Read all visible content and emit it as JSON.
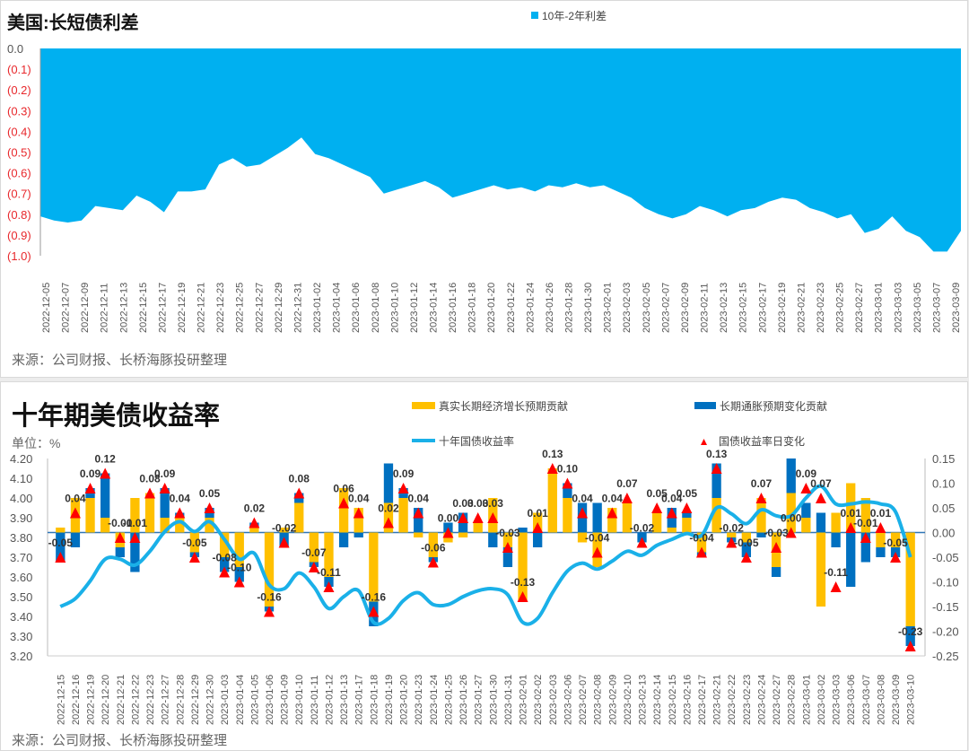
{
  "top": {
    "title": "美国:长短债利差",
    "legend": "10年-2年利差",
    "source": "来源：公司财报、长桥海豚投研整理",
    "colors": {
      "area": "#00b0f0",
      "neg_label": "#e8282c"
    }
  },
  "bottom": {
    "title": "十年期美债收益率",
    "unit": "单位：%",
    "legend": {
      "real": "真实长期经济增长预期贡献",
      "infl": "长期通胀预期变化贡献",
      "yield": "十年国债收益率",
      "change": "国债收益率日变化"
    },
    "source": "来源：公司财报、长桥海豚投研整理",
    "colors": {
      "real": "#ffc000",
      "infl": "#0070c0",
      "yield": "#1ab0e8",
      "change": "#ff0000"
    }
  },
  "chart_data": [
    {
      "type": "area",
      "title": "美国:长短债利差",
      "legend": [
        "10年-2年利差"
      ],
      "yticks": [
        "0.0",
        "(0.1)",
        "(0.2)",
        "(0.3)",
        "(0.4)",
        "(0.5)",
        "(0.6)",
        "(0.7)",
        "(0.8)",
        "(0.9)",
        "(1.0)"
      ],
      "ylim": [
        -1.0,
        0.0
      ],
      "xticks": [
        "2022-12-05",
        "2022-12-07",
        "2022-12-09",
        "2022-12-11",
        "2022-12-13",
        "2022-12-15",
        "2022-12-17",
        "2022-12-19",
        "2022-12-21",
        "2022-12-23",
        "2022-12-25",
        "2022-12-27",
        "2022-12-29",
        "2022-12-31",
        "2023-01-02",
        "2023-01-04",
        "2023-01-06",
        "2023-01-08",
        "2023-01-10",
        "2023-01-12",
        "2023-01-14",
        "2023-01-16",
        "2023-01-18",
        "2023-01-20",
        "2023-01-22",
        "2023-01-24",
        "2023-01-26",
        "2023-01-28",
        "2023-01-30",
        "2023-02-01",
        "2023-02-03",
        "2023-02-05",
        "2023-02-07",
        "2023-02-09",
        "2023-02-11",
        "2023-02-13",
        "2023-02-15",
        "2023-02-17",
        "2023-02-19",
        "2023-02-21",
        "2023-02-23",
        "2023-02-25",
        "2023-02-27",
        "2023-03-01",
        "2023-03-03",
        "2023-03-05",
        "2023-03-07",
        "2023-03-09"
      ],
      "series": [
        {
          "name": "10年-2年利差",
          "values": [
            -0.81,
            -0.83,
            -0.84,
            -0.83,
            -0.76,
            -0.77,
            -0.78,
            -0.71,
            -0.74,
            -0.79,
            -0.69,
            -0.69,
            -0.68,
            -0.56,
            -0.53,
            -0.57,
            -0.56,
            -0.52,
            -0.48,
            -0.43,
            -0.51,
            -0.53,
            -0.56,
            -0.59,
            -0.62,
            -0.7,
            -0.68,
            -0.66,
            -0.64,
            -0.67,
            -0.72,
            -0.7,
            -0.68,
            -0.66,
            -0.68,
            -0.67,
            -0.69,
            -0.66,
            -0.67,
            -0.65,
            -0.67,
            -0.66,
            -0.69,
            -0.72,
            -0.77,
            -0.8,
            -0.82,
            -0.8,
            -0.76,
            -0.78,
            -0.81,
            -0.78,
            -0.77,
            -0.74,
            -0.72,
            -0.73,
            -0.77,
            -0.79,
            -0.82,
            -0.8,
            -0.89,
            -0.87,
            -0.81,
            -0.88,
            -0.91,
            -0.98,
            -0.98,
            -0.88
          ]
        }
      ]
    },
    {
      "type": "bar",
      "title": "十年期美债收益率",
      "ylabel_left": "单位：%",
      "yticks_left": [
        "4.20",
        "4.10",
        "4.00",
        "3.90",
        "3.80",
        "3.70",
        "3.60",
        "3.50",
        "3.40",
        "3.30",
        "3.20"
      ],
      "ylim_left": [
        3.2,
        4.2
      ],
      "yticks_right": [
        "0.15",
        "0.10",
        "0.05",
        "0.00",
        "-0.05",
        "-0.10",
        "-0.15",
        "-0.20",
        "-0.25"
      ],
      "ylim_right": [
        -0.25,
        0.15
      ],
      "categories": [
        "2022-12-15",
        "2022-12-16",
        "2022-12-19",
        "2022-12-20",
        "2022-12-21",
        "2022-12-22",
        "2022-12-23",
        "2022-12-27",
        "2022-12-28",
        "2022-12-29",
        "2022-12-30",
        "2023-01-03",
        "2023-01-04",
        "2023-01-05",
        "2023-01-06",
        "2023-01-09",
        "2023-01-10",
        "2023-01-11",
        "2023-01-12",
        "2023-01-13",
        "2023-01-17",
        "2023-01-18",
        "2023-01-19",
        "2023-01-20",
        "2023-01-23",
        "2023-01-24",
        "2023-01-25",
        "2023-01-26",
        "2023-01-27",
        "2023-01-30",
        "2023-01-31",
        "2023-02-01",
        "2023-02-02",
        "2023-02-03",
        "2023-02-06",
        "2023-02-07",
        "2023-02-08",
        "2023-02-09",
        "2023-02-10",
        "2023-02-13",
        "2023-02-14",
        "2023-02-15",
        "2023-02-16",
        "2023-02-17",
        "2023-02-21",
        "2023-02-22",
        "2023-02-23",
        "2023-02-24",
        "2023-02-27",
        "2023-02-28",
        "2023-03-01",
        "2023-03-02",
        "2023-03-03",
        "2023-03-06",
        "2023-03-07",
        "2023-03-08",
        "2023-03-09",
        "2023-03-10"
      ],
      "series": [
        {
          "name": "真实长期经济增长预期贡献",
          "axis": "right",
          "values": [
            0.01,
            0.07,
            0.07,
            0.03,
            -0.03,
            0.07,
            0.08,
            0.03,
            0.03,
            -0.04,
            0.03,
            -0.05,
            -0.07,
            0.01,
            -0.15,
            0.01,
            0.06,
            -0.06,
            -0.09,
            0.09,
            0.05,
            -0.14,
            0.06,
            0.07,
            -0.01,
            -0.05,
            -0.02,
            -0.01,
            0.02,
            0.07,
            -0.03,
            -0.14,
            0.04,
            0.13,
            0.07,
            -0.02,
            -0.07,
            0.05,
            0.06,
            0.0,
            0.04,
            0.01,
            0.03,
            -0.04,
            0.07,
            -0.01,
            -0.02,
            0.07,
            -0.07,
            0.08,
            0.03,
            -0.15,
            0.04,
            0.1,
            0.07,
            -0.03,
            -0.03,
            -0.19
          ]
        },
        {
          "name": "长期通胀预期变化贡献",
          "axis": "right",
          "values": [
            -0.06,
            -0.03,
            0.02,
            0.09,
            -0.02,
            -0.08,
            0.0,
            0.06,
            0.01,
            -0.01,
            0.02,
            -0.03,
            -0.03,
            0.01,
            -0.01,
            -0.03,
            0.02,
            -0.01,
            -0.02,
            -0.03,
            -0.01,
            -0.05,
            0.08,
            0.02,
            0.05,
            -0.01,
            0.02,
            0.04,
            0.0,
            -0.03,
            -0.04,
            0.01,
            -0.03,
            0.0,
            0.03,
            0.06,
            0.06,
            0.0,
            0.0,
            -0.02,
            0.0,
            0.04,
            0.01,
            -0.01,
            0.07,
            -0.01,
            -0.03,
            -0.01,
            -0.02,
            0.07,
            0.03,
            0.04,
            -0.03,
            -0.11,
            -0.06,
            -0.02,
            -0.02,
            -0.04
          ]
        },
        {
          "name": "国债收益率日变化",
          "axis": "right",
          "labels": [
            "-0.05",
            "0.04",
            "0.09",
            "0.12",
            "-0.01",
            "-0.01",
            "0.08",
            "0.09",
            "0.04",
            "-0.05",
            "0.05",
            "-0.08",
            "-0.10",
            "0.02",
            "-0.16",
            "-0.02",
            "0.08",
            "-0.07",
            "-0.11",
            "0.06",
            "0.04",
            "-0.16",
            "0.02",
            "0.09",
            "0.04",
            "-0.06",
            "0.00",
            "0.03",
            "0.03",
            "0.03",
            "-0.03",
            "-0.13",
            "0.01",
            "0.13",
            "0.10",
            "0.04",
            "-0.04",
            "0.04",
            "0.07",
            "-0.02",
            "0.05",
            "0.04",
            "0.05",
            "-0.04",
            "0.13",
            "-0.02",
            "-0.05",
            "0.07",
            "-0.03",
            "0.00",
            "0.09",
            "0.07",
            "-0.11",
            "0.01",
            "-0.01",
            "0.01",
            "-0.05",
            "-0.23"
          ],
          "values": [
            -0.05,
            0.04,
            0.09,
            0.12,
            -0.01,
            -0.01,
            0.08,
            0.09,
            0.04,
            -0.05,
            0.05,
            -0.08,
            -0.1,
            0.02,
            -0.16,
            -0.02,
            0.08,
            -0.07,
            -0.11,
            0.06,
            0.04,
            -0.16,
            0.02,
            0.09,
            0.04,
            -0.06,
            0.0,
            0.03,
            0.03,
            0.03,
            -0.03,
            -0.13,
            0.01,
            0.13,
            0.1,
            0.04,
            -0.04,
            0.04,
            0.07,
            -0.02,
            0.05,
            0.04,
            0.05,
            -0.04,
            0.13,
            -0.02,
            -0.05,
            0.07,
            -0.03,
            0.0,
            0.09,
            0.07,
            -0.11,
            0.01,
            -0.01,
            0.01,
            -0.05,
            -0.23
          ]
        },
        {
          "name": "十年国债收益率",
          "axis": "left",
          "type": "line",
          "values": [
            3.45,
            3.49,
            3.58,
            3.69,
            3.69,
            3.66,
            3.73,
            3.83,
            3.88,
            3.83,
            3.88,
            3.79,
            3.69,
            3.72,
            3.56,
            3.54,
            3.62,
            3.55,
            3.44,
            3.5,
            3.53,
            3.37,
            3.39,
            3.48,
            3.52,
            3.46,
            3.46,
            3.5,
            3.53,
            3.54,
            3.51,
            3.37,
            3.39,
            3.52,
            3.63,
            3.67,
            3.64,
            3.68,
            3.73,
            3.71,
            3.76,
            3.79,
            3.82,
            3.81,
            3.95,
            3.92,
            3.87,
            3.94,
            3.91,
            3.91,
            4.0,
            4.06,
            3.97,
            3.97,
            3.98,
            3.97,
            3.93,
            3.7
          ]
        }
      ]
    }
  ]
}
